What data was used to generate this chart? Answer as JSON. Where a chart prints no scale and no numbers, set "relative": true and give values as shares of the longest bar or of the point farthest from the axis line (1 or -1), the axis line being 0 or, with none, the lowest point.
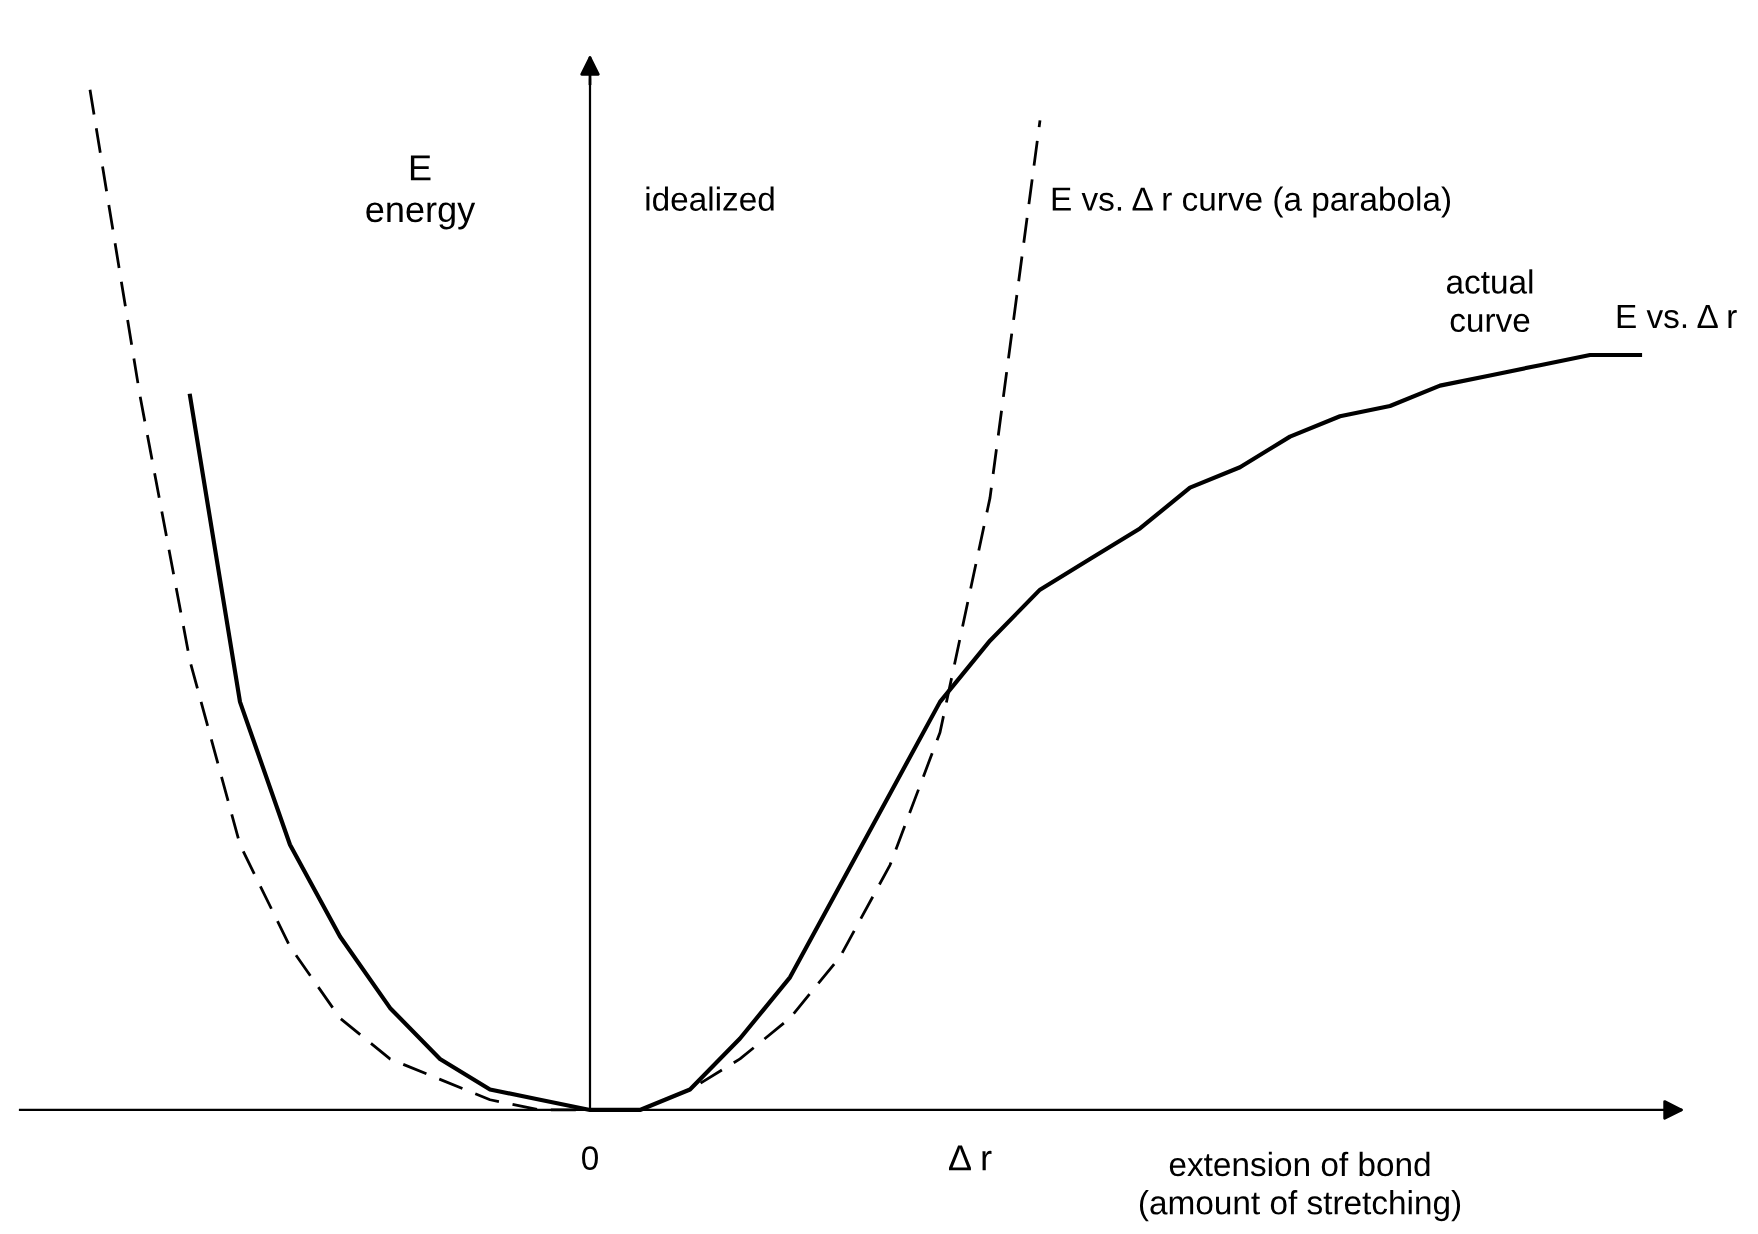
{
  "chart_data": {
    "type": "line",
    "relative": true,
    "ylabel": "E\nenergy",
    "xlabel": "Δ r",
    "categories": [
      null,
      null,
      null,
      null,
      null,
      null,
      null,
      null,
      null,
      null,
      null,
      null,
      null,
      null,
      null,
      null,
      null,
      null,
      null,
      null,
      null,
      null,
      null,
      null,
      null,
      null,
      null,
      null,
      null,
      null,
      null,
      null
    ],
    "series": [
      {
        "color": "#000000",
        "line_style": "dashed",
        "values": [
          1.0,
          0.7,
          0.44,
          0.26,
          0.16,
          0.09,
          0.05,
          0.03,
          0.01,
          0.0,
          0.0,
          0.0,
          0.02,
          0.05,
          0.09,
          0.15,
          0.24,
          0.37,
          0.6,
          0.97,
          null,
          null,
          null,
          null,
          null,
          null,
          null,
          null,
          null,
          null,
          null,
          null
        ]
      },
      {
        "color": "#000000",
        "line_style": "solid",
        "values": [
          null,
          null,
          0.7,
          0.4,
          0.26,
          0.17,
          0.1,
          0.05,
          0.02,
          0.01,
          0.0,
          0.0,
          0.02,
          0.07,
          0.13,
          0.22,
          0.31,
          0.4,
          0.46,
          0.51,
          0.54,
          0.57,
          0.61,
          0.63,
          0.66,
          0.68,
          0.69,
          0.71,
          0.72,
          0.73,
          0.74,
          0.74
        ]
      }
    ],
    "annotations": [
      "0",
      "idealized",
      "E vs. Δ r curve (a parabola)",
      "actual\ncurve",
      "E vs. Δ r",
      "extension of bond\n(amount of stretching)"
    ]
  }
}
